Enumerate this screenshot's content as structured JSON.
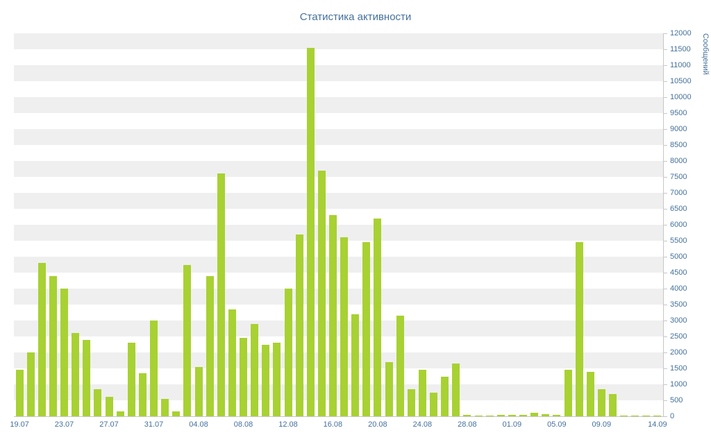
{
  "chart": {
    "title": "Статистика активности",
    "ylabel": "Сообщений"
  },
  "colors": {
    "bar": "#a8d133",
    "text": "#44709d",
    "stripe": "#efefef",
    "axis": "#c6c6c6"
  },
  "chart_data": {
    "type": "bar",
    "title": "Статистика активности",
    "xlabel": "",
    "ylabel": "Сообщений",
    "ylim": [
      0,
      12000
    ],
    "y_tick_step": 500,
    "grid": "horizontal-stripes",
    "legend": "none",
    "y_axis_side": "right",
    "y_ticks": [
      0,
      500,
      1000,
      1500,
      2000,
      2500,
      3000,
      3500,
      4000,
      4500,
      5000,
      5500,
      6000,
      6500,
      7000,
      7500,
      8000,
      8500,
      9000,
      9500,
      10000,
      10500,
      11000,
      11500,
      12000
    ],
    "x_tick_labels": [
      "19.07",
      "23.07",
      "27.07",
      "31.07",
      "04.08",
      "08.08",
      "12.08",
      "16.08",
      "20.08",
      "24.08",
      "28.08",
      "01.09",
      "05.09",
      "09.09",
      "14.09"
    ],
    "x_tick_positions": [
      0,
      4,
      8,
      12,
      16,
      20,
      24,
      28,
      32,
      36,
      40,
      44,
      48,
      52,
      57
    ],
    "categories": [
      "19.07",
      "20.07",
      "21.07",
      "22.07",
      "23.07",
      "24.07",
      "25.07",
      "26.07",
      "27.07",
      "28.07",
      "29.07",
      "30.07",
      "31.07",
      "01.08",
      "02.08",
      "03.08",
      "04.08",
      "05.08",
      "06.08",
      "07.08",
      "08.08",
      "09.08",
      "10.08",
      "11.08",
      "12.08",
      "13.08",
      "14.08",
      "15.08",
      "16.08",
      "17.08",
      "18.08",
      "19.08",
      "20.08",
      "21.08",
      "22.08",
      "23.08",
      "24.08",
      "25.08",
      "26.08",
      "27.08",
      "28.08",
      "29.08",
      "30.08",
      "31.08",
      "01.09",
      "02.09",
      "03.09",
      "04.09",
      "05.09",
      "06.09",
      "07.09",
      "08.09",
      "09.09",
      "10.09",
      "11.09",
      "12.09",
      "13.09",
      "14.09"
    ],
    "values": [
      1450,
      2000,
      4800,
      4400,
      4000,
      2600,
      2400,
      850,
      600,
      150,
      2300,
      1350,
      3000,
      550,
      150,
      4750,
      1550,
      4400,
      7600,
      3350,
      2450,
      2900,
      2250,
      2300,
      4000,
      5700,
      11550,
      7700,
      6300,
      5600,
      3200,
      5450,
      6200,
      1700,
      3150,
      850,
      1450,
      750,
      1250,
      1650,
      50,
      30,
      30,
      50,
      50,
      40,
      100,
      60,
      40,
      1450,
      5450,
      1400,
      850,
      700,
      30,
      20,
      20,
      20
    ]
  }
}
